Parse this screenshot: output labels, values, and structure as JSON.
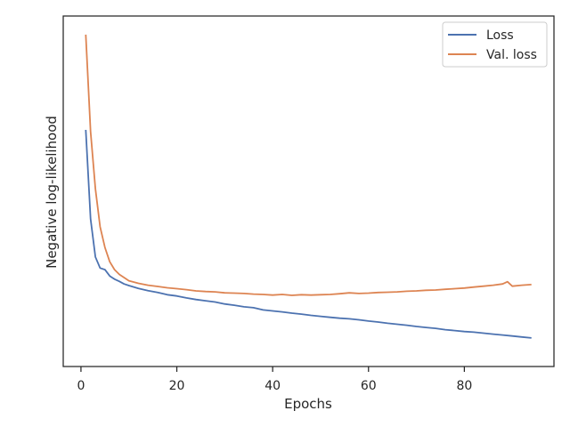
{
  "chart_data": {
    "type": "line",
    "xlabel": "Epochs",
    "ylabel": "Negative log-likelihood",
    "xlim": [
      -3.7,
      98.7
    ],
    "ylim": [
      0,
      1
    ],
    "x_ticks": [
      0,
      20,
      40,
      60,
      80
    ],
    "y_ticks_shown": false,
    "grid": false,
    "legend": {
      "placement": "top-right"
    },
    "series": [
      {
        "name": "Loss",
        "color": "#4c72b0",
        "points": [
          [
            1,
            0.675
          ],
          [
            2,
            0.395
          ],
          [
            3,
            0.275
          ],
          [
            4,
            0.24
          ],
          [
            5,
            0.235
          ],
          [
            6,
            0.215
          ],
          [
            7,
            0.205
          ],
          [
            8,
            0.198
          ],
          [
            9,
            0.19
          ],
          [
            10,
            0.185
          ],
          [
            12,
            0.176
          ],
          [
            14,
            0.169
          ],
          [
            16,
            0.163
          ],
          [
            18,
            0.156
          ],
          [
            20,
            0.152
          ],
          [
            22,
            0.146
          ],
          [
            24,
            0.141
          ],
          [
            26,
            0.137
          ],
          [
            28,
            0.133
          ],
          [
            30,
            0.127
          ],
          [
            32,
            0.123
          ],
          [
            34,
            0.118
          ],
          [
            36,
            0.115
          ],
          [
            38,
            0.108
          ],
          [
            40,
            0.105
          ],
          [
            42,
            0.102
          ],
          [
            44,
            0.098
          ],
          [
            46,
            0.095
          ],
          [
            48,
            0.091
          ],
          [
            50,
            0.088
          ],
          [
            52,
            0.085
          ],
          [
            54,
            0.082
          ],
          [
            56,
            0.08
          ],
          [
            58,
            0.077
          ],
          [
            60,
            0.073
          ],
          [
            62,
            0.07
          ],
          [
            64,
            0.066
          ],
          [
            66,
            0.063
          ],
          [
            68,
            0.06
          ],
          [
            70,
            0.056
          ],
          [
            72,
            0.053
          ],
          [
            74,
            0.05
          ],
          [
            76,
            0.046
          ],
          [
            78,
            0.043
          ],
          [
            80,
            0.04
          ],
          [
            82,
            0.038
          ],
          [
            84,
            0.035
          ],
          [
            86,
            0.032
          ],
          [
            88,
            0.029
          ],
          [
            90,
            0.026
          ],
          [
            92,
            0.023
          ],
          [
            94,
            0.02
          ]
        ]
      },
      {
        "name": "Val. loss",
        "color": "#dd8452",
        "points": [
          [
            1,
            0.975
          ],
          [
            2,
            0.67
          ],
          [
            3,
            0.49
          ],
          [
            4,
            0.37
          ],
          [
            5,
            0.305
          ],
          [
            6,
            0.26
          ],
          [
            7,
            0.235
          ],
          [
            8,
            0.22
          ],
          [
            9,
            0.21
          ],
          [
            10,
            0.2
          ],
          [
            12,
            0.192
          ],
          [
            14,
            0.186
          ],
          [
            16,
            0.182
          ],
          [
            18,
            0.178
          ],
          [
            20,
            0.175
          ],
          [
            22,
            0.172
          ],
          [
            24,
            0.168
          ],
          [
            26,
            0.166
          ],
          [
            28,
            0.165
          ],
          [
            30,
            0.162
          ],
          [
            32,
            0.161
          ],
          [
            34,
            0.16
          ],
          [
            36,
            0.158
          ],
          [
            38,
            0.157
          ],
          [
            40,
            0.155
          ],
          [
            42,
            0.157
          ],
          [
            44,
            0.154
          ],
          [
            46,
            0.156
          ],
          [
            48,
            0.155
          ],
          [
            50,
            0.156
          ],
          [
            52,
            0.157
          ],
          [
            54,
            0.159
          ],
          [
            56,
            0.162
          ],
          [
            58,
            0.16
          ],
          [
            60,
            0.161
          ],
          [
            62,
            0.163
          ],
          [
            64,
            0.164
          ],
          [
            66,
            0.165
          ],
          [
            68,
            0.167
          ],
          [
            70,
            0.168
          ],
          [
            72,
            0.17
          ],
          [
            74,
            0.171
          ],
          [
            76,
            0.173
          ],
          [
            78,
            0.175
          ],
          [
            80,
            0.177
          ],
          [
            82,
            0.18
          ],
          [
            84,
            0.183
          ],
          [
            86,
            0.186
          ],
          [
            88,
            0.19
          ],
          [
            89,
            0.197
          ],
          [
            90,
            0.183
          ],
          [
            92,
            0.186
          ],
          [
            94,
            0.188
          ]
        ]
      }
    ]
  }
}
